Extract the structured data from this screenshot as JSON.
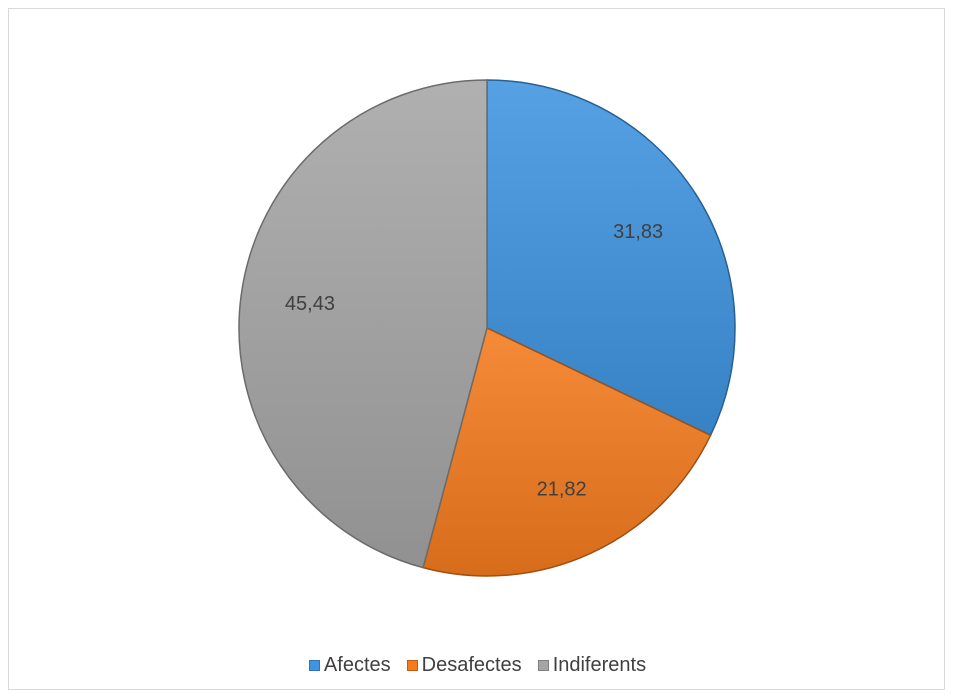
{
  "chart_data": {
    "type": "pie",
    "categories": [
      "Afectes",
      "Desafectes",
      "Indiferents"
    ],
    "values": [
      31.83,
      21.82,
      45.43
    ],
    "value_labels": [
      "31,83",
      "21,82",
      "45,43"
    ],
    "colors": [
      "#3f93e0",
      "#f47b1e",
      "#a5a5a5"
    ],
    "start_angle": "12 o'clock",
    "direction": "clockwise",
    "legend_position": "bottom",
    "title": ""
  }
}
